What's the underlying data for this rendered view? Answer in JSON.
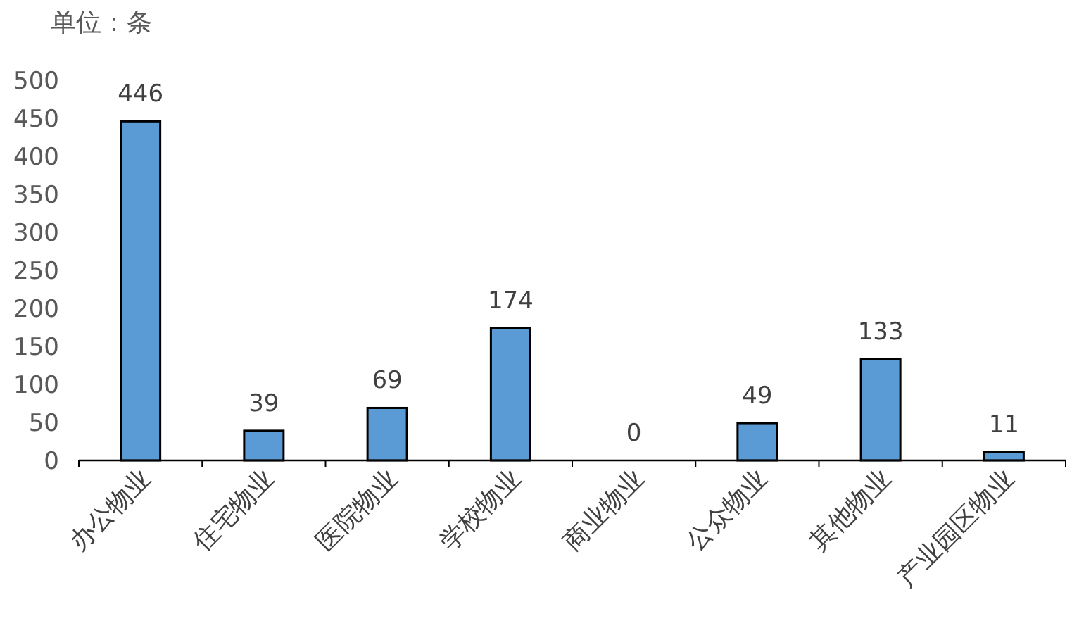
{
  "chart_data": {
    "type": "bar",
    "ylabel": "单位：条",
    "categories": [
      "办公物业",
      "住宅物业",
      "医院物业",
      "学校物业",
      "商业物业",
      "公众物业",
      "其他物业",
      "产业园区物业"
    ],
    "values": [
      446,
      39,
      69,
      174,
      0,
      49,
      133,
      11
    ],
    "color": "#5b9bd5",
    "ylim": [
      0,
      500
    ],
    "yticks": [
      0,
      50,
      100,
      150,
      200,
      250,
      300,
      350,
      400,
      450,
      500
    ],
    "data_labels": true,
    "grid": false
  }
}
